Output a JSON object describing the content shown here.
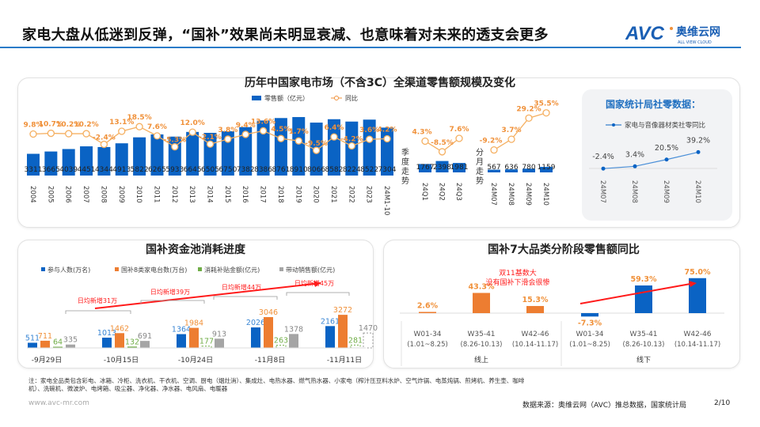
{
  "title": "家电大盘从低迷到反弹，“国补”效果尚未明显衰减、也意味着对未来的透支会更多",
  "logo": {
    "mark": "AVC",
    "cn": "奥维云网",
    "en": "ALL VIEW CLOUD"
  },
  "colors": {
    "blue": "#0a63c4",
    "orange": "#f0913a",
    "orange_bar": "#ed7d31",
    "green": "#70ad47",
    "gray": "#a5a5a5",
    "red": "#ff1a1a",
    "accent": "#2a7bc8"
  },
  "top_chart": {
    "title": "历年中国家电市场（不含3C）全渠道零售额规模及变化",
    "legend": {
      "bar": "零售额（亿元）",
      "line": "同比"
    },
    "chart_data": {
      "type": "bar+line",
      "categories": [
        "2004",
        "2005",
        "2006",
        "2007",
        "2008",
        "2009",
        "2010",
        "2011",
        "2012",
        "2013",
        "2014",
        "2015",
        "2016",
        "2017",
        "2018",
        "2019",
        "2020",
        "2021",
        "2022",
        "2023",
        "24M1-10"
      ],
      "series": [
        {
          "name": "零售额（亿元）",
          "type": "bar",
          "values": [
            3311,
            3665,
            4039,
            4451,
            4344,
            4913,
            5822,
            6265,
            5933,
            6645,
            6505,
            6750,
            7382,
            8386,
            8761,
            8910,
            8066,
            8582,
            8224,
            8522,
            7304
          ]
        },
        {
          "name": "同比",
          "type": "line",
          "unit": "%",
          "values": [
            9.8,
            10.7,
            10.2,
            10.2,
            -2.4,
            13.1,
            18.5,
            7.6,
            -5.3,
            12.0,
            -2.1,
            3.8,
            9.4,
            13.6,
            4.5,
            1.7,
            -9.5,
            6.4,
            -4.2,
            3.6,
            4.2
          ]
        }
      ]
    },
    "quarterly": {
      "label": "季度走势",
      "categories": [
        "24Q1",
        "24Q2",
        "24Q3"
      ],
      "values": [
        1767,
        2398,
        1981
      ],
      "growth": [
        4.3,
        -8.5,
        7.6
      ]
    },
    "monthly": {
      "label": "分月走势",
      "categories": [
        "24M07",
        "24M08",
        "24M09",
        "24M10"
      ],
      "values": [
        567,
        636,
        780,
        1159
      ],
      "growth": [
        -9.2,
        3.7,
        29.2,
        35.5
      ]
    }
  },
  "nbs_panel": {
    "title": "国家统计局社零数据：",
    "chart_data": {
      "type": "line",
      "series": [
        {
          "name": "家电与音像器材类社零同比",
          "values": [
            -2.4,
            3.4,
            20.5,
            39.2
          ]
        }
      ],
      "categories": [
        "24M07",
        "24M08",
        "24M09",
        "24M10"
      ],
      "unit": "%"
    }
  },
  "subsidy_chart": {
    "title": "国补资金池消耗进度",
    "chart_data": {
      "type": "bar",
      "categories": [
        "-9月29日",
        "-10月15日",
        "-10月24日",
        "-11月8日",
        "-11月11日"
      ],
      "series": [
        {
          "name": "参与人数(万名)",
          "values": [
            511,
            1013,
            1364,
            2026,
            2161
          ]
        },
        {
          "name": "国补8类家电台数(万台)",
          "values": [
            711,
            1462,
            1984,
            3046,
            3272
          ]
        },
        {
          "name": "消耗补贴金额(亿元)",
          "values": [
            64,
            132,
            177,
            263,
            281
          ]
        },
        {
          "name": "带动销售额(亿元)",
          "values": [
            335,
            691,
            913,
            1378,
            1470
          ]
        }
      ]
    },
    "annotations": [
      "日均新增31万",
      "日均新增39万",
      "日均新增44万",
      "日均新增45万"
    ]
  },
  "category_chart": {
    "title": "国补7大品类分阶段零售额同比",
    "chart_data": {
      "type": "bar",
      "groups": [
        "线上",
        "线下"
      ],
      "categories": [
        [
          "W01-34",
          "(1.01~8.25)"
        ],
        [
          "W35-41",
          "(8.26-10.13)"
        ],
        [
          "W42-46",
          "(10.14-11.17)"
        ]
      ],
      "series": [
        {
          "name": "线上",
          "values": [
            2.6,
            43.3,
            15.3
          ]
        },
        {
          "name": "线下",
          "values": [
            -7.3,
            59.3,
            75.0
          ]
        }
      ],
      "unit": "%"
    },
    "annotation": [
      "双11基数大",
      "没有国补下滑会很惨"
    ]
  },
  "footer": {
    "note": "注：家电全品类包含彩电、冰箱、冷柜、洗衣机、干衣机、空调、厨电（烟灶消）、集成灶、电热水器、燃气热水器、小家电（榨汁压豆料水炉、空气炸锅、电蒸炖锅、煎烤机、养生壶、咖啡机）、洗碗机、微波炉、电烤箱、吸尘器、净化器、净水器、电风扇、电暖器",
    "url": "www.avc-mr.com",
    "source": "数据来源：奥维云网（AVC）推总数据，国家统计局",
    "page": "2/10"
  }
}
